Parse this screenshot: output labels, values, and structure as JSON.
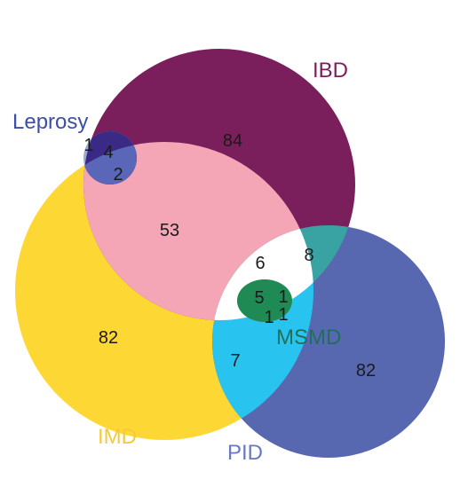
{
  "sets": {
    "ibd": {
      "label": "IBD",
      "color": "#7b1f5c"
    },
    "imd": {
      "label": "IMD",
      "color": "#fdd835"
    },
    "pid": {
      "label": "PID",
      "color": "#5868b0"
    },
    "leprosy": {
      "label": "Leprosy",
      "color": "#3d4fa3"
    },
    "msmd": {
      "label": "MSMD",
      "color": "#1f6f5a"
    }
  },
  "overlap_colors": {
    "ibd_imd": "#f4a6b7",
    "ibd_pid": "#39a3a3",
    "imd_pid": "#29c3f0",
    "leprosy_only": "#9aaad6",
    "leprosy_ibd": "#3a2a85",
    "leprosy_ibd_imd": "#5a66b8",
    "msmd": "#7fbb78",
    "msmd_pid": "#208a55"
  },
  "counts": {
    "ibd_only": "84",
    "imd_only": "82",
    "pid_only": "82",
    "ibd_imd": "53",
    "ibd_pid": "8",
    "imd_pid": "7",
    "ibd_imd_pid": "6",
    "leprosy_only": "1",
    "leprosy_ibd": "4",
    "leprosy_ibd_imd": "2",
    "msmd_core": "5",
    "msmd_pid_upper": "1",
    "msmd_pid_mid": "1",
    "msmd_pid_lower": "1"
  }
}
